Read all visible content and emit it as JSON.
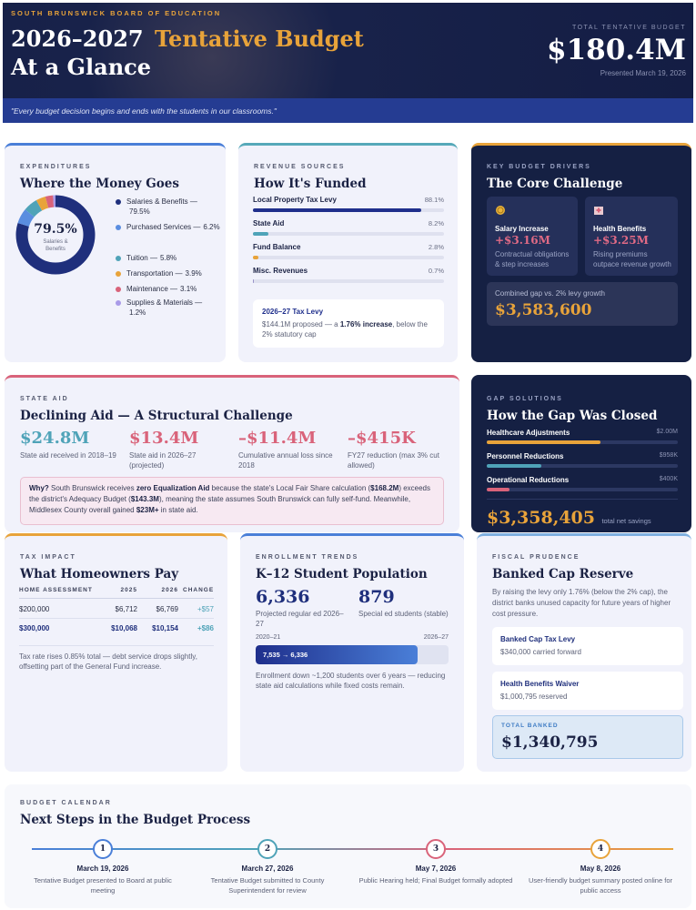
{
  "header": {
    "org": "SOUTH BRUNSWICK BOARD OF EDUCATION",
    "title_years": "2026–2027",
    "title_highlight": "Tentative Budget",
    "title_line2": "At a Glance",
    "total_label": "TOTAL TENTATIVE BUDGET",
    "total": "$180.4M",
    "presented": "Presented March 19, 2026",
    "quote": "\"Every budget decision begins and ends with the students in our classrooms.\""
  },
  "expenditures": {
    "eyebrow": "EXPENDITURES",
    "title": "Where the Money Goes",
    "center_value": "79.5%",
    "center_label": "Salaries & Benefits",
    "items": [
      {
        "name": "Salaries & Benefits —",
        "value": 79.5,
        "value_label": "79.5%",
        "color": "#1f2f7c"
      },
      {
        "name": "Purchased Services —",
        "value": 6.2,
        "value_label": "6.2%",
        "color": "#5a8de0"
      },
      {
        "name": "Tuition —",
        "value": 5.8,
        "value_label": "5.8%",
        "color": "#4fa3b8"
      },
      {
        "name": "Transportation —",
        "value": 3.9,
        "value_label": "3.9%",
        "color": "#e8a33a"
      },
      {
        "name": "Maintenance —",
        "value": 3.1,
        "value_label": "3.1%",
        "color": "#d9637a"
      },
      {
        "name": "Supplies & Materials —",
        "value": 1.2,
        "value_label": "1.2%",
        "color": "#a99be8"
      }
    ]
  },
  "revenue": {
    "eyebrow": "REVENUE SOURCES",
    "title": "How It's Funded",
    "items": [
      {
        "name": "Local Property Tax Levy",
        "value": 88.1,
        "value_label": "88.1%",
        "color": "#1f2f8c"
      },
      {
        "name": "State Aid",
        "value": 8.2,
        "value_label": "8.2%",
        "color": "#4fa3b8"
      },
      {
        "name": "Fund Balance",
        "value": 2.8,
        "value_label": "2.8%",
        "color": "#e8a33a"
      },
      {
        "name": "Misc. Revenues",
        "value": 0.7,
        "value_label": "0.7%",
        "color": "#9a93c9"
      }
    ],
    "levy": {
      "title": "2026–27 Tax Levy",
      "text": [
        {
          "text": "$144.1M proposed — a ",
          "bold": false
        },
        {
          "text": "1.76% increase",
          "bold": true
        },
        {
          "text": ", below the 2% statutory cap",
          "bold": false
        }
      ]
    }
  },
  "drivers": {
    "eyebrow": "KEY BUDGET DRIVERS",
    "title": "The Core Challenge",
    "cards": [
      {
        "title": "Salary Increase",
        "amount": "+$3.16M",
        "note": "Contractual obligations & step increases"
      },
      {
        "title": "Health Benefits",
        "amount": "+$3.25M",
        "note": "Rising premiums outpace revenue growth"
      }
    ],
    "gap_label": "Combined gap vs. 2% levy growth",
    "gap_value": "$3,583,600"
  },
  "state_aid": {
    "eyebrow": "STATE AID",
    "title": "Declining Aid — A Structural Challenge",
    "stats": [
      {
        "value": "$24.8M",
        "label": "State aid received in 2018–19",
        "color": "#4fa3b8"
      },
      {
        "value": "$13.4M",
        "label": "State aid in 2026–27 (projected)",
        "color": "#d9637a"
      },
      {
        "value": "–$11.4M",
        "label": "Cumulative annual loss since 2018",
        "color": "#d9637a"
      },
      {
        "value": "–$415K",
        "label": "FY27 reduction (max 3% cut allowed)",
        "color": "#d9637a"
      }
    ],
    "note": [
      {
        "text": "Why?",
        "bold": true
      },
      {
        "text": " South Brunswick receives ",
        "bold": false
      },
      {
        "text": "zero Equalization Aid",
        "bold": true
      },
      {
        "text": " because the state's Local Fair Share calculation (",
        "bold": false
      },
      {
        "text": "$168.2M",
        "bold": true
      },
      {
        "text": ") exceeds the district's Adequacy Budget (",
        "bold": false
      },
      {
        "text": "$143.3M",
        "bold": true
      },
      {
        "text": "), meaning the state assumes South Brunswick can fully self-fund. Meanwhile, Middlesex County overall gained ",
        "bold": false
      },
      {
        "text": "$23M+",
        "bold": true
      },
      {
        "text": " in state aid.",
        "bold": false
      }
    ]
  },
  "gap_solutions": {
    "eyebrow": "GAP SOLUTIONS",
    "title": "How the Gap Was Closed",
    "items": [
      {
        "name": "Healthcare Adjustments",
        "value": 2000000,
        "value_label": "$2.00M",
        "color": "#e8a33a"
      },
      {
        "name": "Personnel Reductions",
        "value": 958000,
        "value_label": "$958K",
        "color": "#4fa3b8"
      },
      {
        "name": "Operational Reductions",
        "value": 400000,
        "value_label": "$400K",
        "color": "#d9637a"
      }
    ],
    "total": "$3,358,405",
    "total_label": "total net savings"
  },
  "tax_impact": {
    "eyebrow": "TAX IMPACT",
    "title": "What Homeowners Pay",
    "columns": [
      "HOME ASSESSMENT",
      "2025",
      "2026",
      "CHANGE"
    ],
    "rows": [
      [
        "$200,000",
        "$6,712",
        "$6,769",
        "+$57"
      ],
      [
        "$300,000",
        "$10,068",
        "$10,154",
        "+$86"
      ]
    ],
    "note": "Tax rate rises 0.85% total — debt service drops slightly, offsetting part of the General Fund increase."
  },
  "enrollment": {
    "eyebrow": "ENROLLMENT TRENDS",
    "title": "K–12 Student Population",
    "stats": [
      {
        "value": "6,336",
        "label": "Projected regular ed 2026–27"
      },
      {
        "value": "879",
        "label": "Special ed students (stable)"
      }
    ],
    "bar": {
      "start_label": "2020–21",
      "end_label": "2026–27",
      "from": 7535,
      "to": 6336,
      "label": "7,535 → 6,336"
    },
    "note": "Enrollment down ~1,200 students over 6 years — reducing state aid calculations while fixed costs remain."
  },
  "fiscal": {
    "eyebrow": "FISCAL PRUDENCE",
    "title": "Banked Cap Reserve",
    "intro": "By raising the levy only 1.76% (below the 2% cap), the district banks unused capacity for future years of higher cost pressure.",
    "items": [
      {
        "title": "Banked Cap Tax Levy",
        "note": "$340,000 carried forward"
      },
      {
        "title": "Health Benefits Waiver",
        "note": "$1,000,795 reserved"
      }
    ],
    "total_label": "TOTAL BANKED",
    "total": "$1,340,795"
  },
  "calendar": {
    "eyebrow": "BUDGET CALENDAR",
    "title": "Next Steps in the Budget Process",
    "steps": [
      {
        "number": 1,
        "date": "March 19, 2026",
        "text": "Tentative Budget presented to Board at public meeting",
        "color": "#4a7fd8"
      },
      {
        "number": 2,
        "date": "March 27, 2026",
        "text": "Tentative Budget submitted to County Superintendent for review",
        "color": "#4fa3b8"
      },
      {
        "number": 3,
        "date": "May 7, 2026",
        "text": "Public Hearing held; Final Budget formally adopted",
        "color": "#d9637a"
      },
      {
        "number": 4,
        "date": "May 8, 2026",
        "text": "User-friendly budget summary posted online for public access",
        "color": "#e8a33a"
      }
    ]
  }
}
